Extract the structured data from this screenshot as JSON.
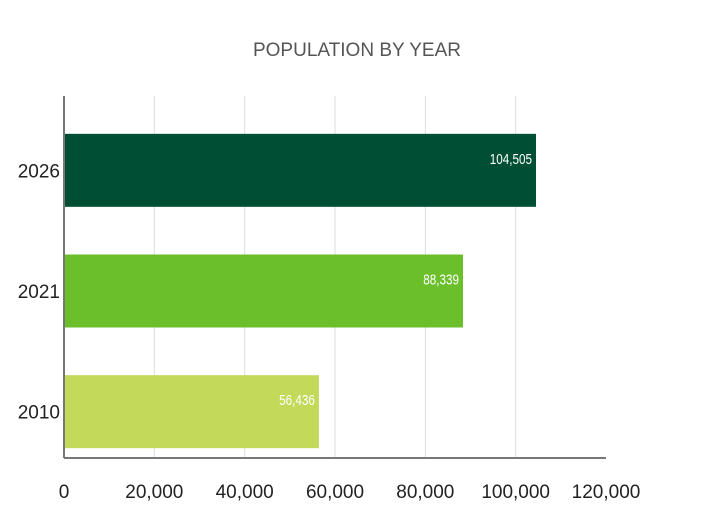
{
  "chart_data": {
    "type": "bar",
    "orientation": "horizontal",
    "title": "POPULATION BY YEAR",
    "xlabel": "",
    "ylabel": "",
    "categories": [
      "2026",
      "2021",
      "2010"
    ],
    "values": [
      104505,
      88339,
      56436
    ],
    "value_labels": [
      "104,505",
      "88,339",
      "56,436"
    ],
    "bar_colors": [
      "#004f35",
      "#6abf2b",
      "#c2d95a"
    ],
    "xlim": [
      0,
      120000
    ],
    "x_ticks": [
      0,
      20000,
      40000,
      60000,
      80000,
      100000,
      120000
    ],
    "x_tick_labels": [
      "0",
      "20,000",
      "40,000",
      "60,000",
      "80,000",
      "100,000",
      "120,000"
    ],
    "grid": "vertical",
    "legend": "none"
  }
}
